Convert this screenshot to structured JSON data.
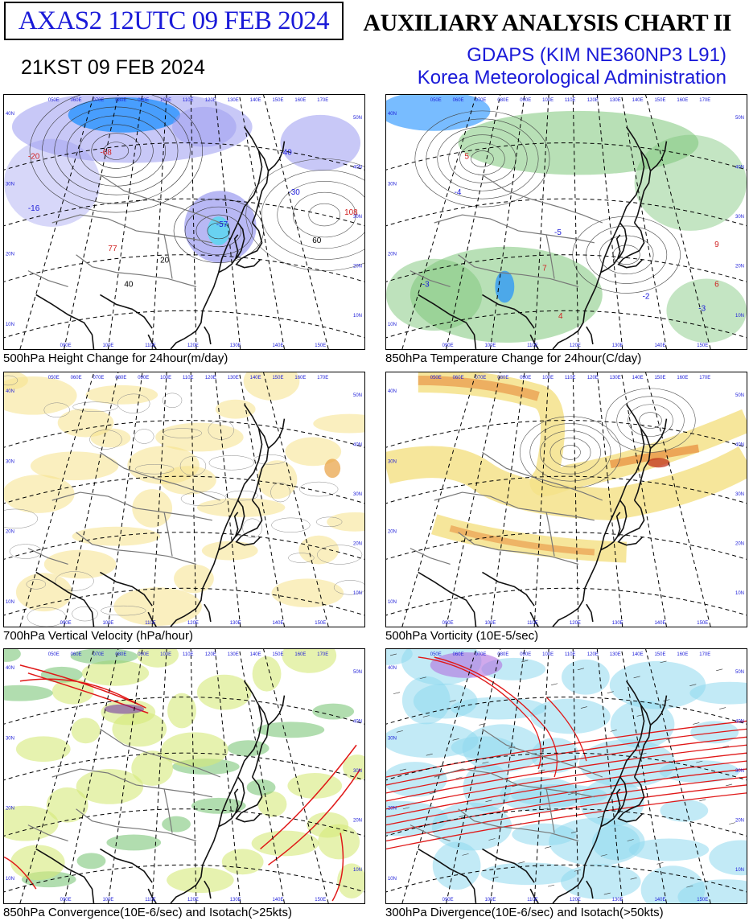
{
  "header": {
    "product_box": "AXAS2  12UTC 09 FEB 2024",
    "kst_time": "21KST 09 FEB 2024",
    "title": "AUXILIARY ANALYSIS CHART II",
    "model": "GDAPS (KIM NE360NP3 L91)",
    "agency": "Korea Meteorological Administration"
  },
  "panels": [
    {
      "caption": "500hPa Height Change for 24hour(m/day)",
      "theme": "height"
    },
    {
      "caption": "850hPa Temperature Change for 24hour(C/day)",
      "theme": "temp"
    },
    {
      "caption": "700hPa Vertical Velocity (hPa/hour)",
      "theme": "vvel"
    },
    {
      "caption": "500hPa Vorticity (10E-5/sec)",
      "theme": "vort"
    },
    {
      "caption": "850hPa Convergence(10E-6/sec) and Isotach(>25kts)",
      "theme": "conv"
    },
    {
      "caption": "300hPa Divergence(10E-6/sec) and Isotach(>50kts)",
      "theme": "div"
    }
  ],
  "map_labels": {
    "lon_top": [
      "050E",
      "060E",
      "070E",
      "080E",
      "090E",
      "100E",
      "110E",
      "120E",
      "130E",
      "140E",
      "150E",
      "160E",
      "170E"
    ],
    "lon_bottom": [
      "090E",
      "100E",
      "110E",
      "120E",
      "130E",
      "140E",
      "150E"
    ],
    "lat_left": [
      "40N",
      "30N",
      "20N",
      "10N"
    ],
    "lat_right": [
      "50N",
      "40N",
      "30N",
      "20N",
      "10N"
    ]
  },
  "panel1_values": [
    {
      "text": "-20",
      "color": "#d02020"
    },
    {
      "text": "-68",
      "color": "#d02020"
    },
    {
      "text": "-16",
      "color": "#1a1ad8"
    },
    {
      "text": "-57",
      "color": "#1a1ad8"
    },
    {
      "text": "-40",
      "color": "#1a1ad8"
    },
    {
      "text": "-30",
      "color": "#1a1ad8"
    },
    {
      "text": "77",
      "color": "#d02020"
    },
    {
      "text": "108",
      "color": "#d02020"
    },
    {
      "text": "40",
      "color": "#000000"
    },
    {
      "text": "20",
      "color": "#000000"
    },
    {
      "text": "60",
      "color": "#000000"
    }
  ],
  "panel2_values": [
    {
      "text": "-4",
      "color": "#1a1ad8"
    },
    {
      "text": "5",
      "color": "#d02020"
    },
    {
      "text": "-3",
      "color": "#1a1ad8"
    },
    {
      "text": "-5",
      "color": "#1a1ad8"
    },
    {
      "text": "7",
      "color": "#d02020"
    },
    {
      "text": "-2",
      "color": "#1a1ad8"
    },
    {
      "text": "4",
      "color": "#d02020"
    },
    {
      "text": "-3",
      "color": "#1a1ad8"
    },
    {
      "text": "9",
      "color": "#d02020"
    },
    {
      "text": "6",
      "color": "#d02020"
    }
  ],
  "colors": {
    "blue_text": "#1a1ad8",
    "red_text": "#d02020",
    "negative_fill": "#9a9af0",
    "cold_fill": "#1e90ff",
    "green_fill": "#7dc67a",
    "yellow_fill": "#f5e28a",
    "orange_fill": "#e88a3a",
    "isotach": "#e01818",
    "div_fill": "#8fd8ef"
  }
}
